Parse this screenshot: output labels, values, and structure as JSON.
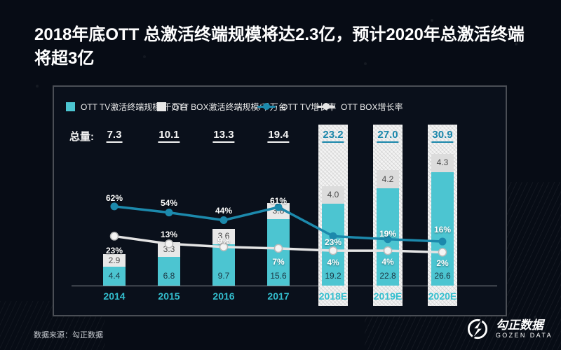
{
  "title": {
    "lines": [
      "2018年底OTT 总激活终端规模将达2.3亿，预计2020年总激活终端",
      "将超3亿"
    ]
  },
  "legend": [
    {
      "label": "OTT TV激活终端规模/千万台",
      "marker": "square",
      "color": "#4CC5D1"
    },
    {
      "label": "OTT BOX激活终端规模/千万台",
      "marker": "square",
      "color": "#E8E8E8"
    },
    {
      "label": "OTT TV增长率",
      "marker": "line",
      "color": "#1C89AC"
    },
    {
      "label": "OTT BOX增长率",
      "marker": "line",
      "color": "#E4E4E4"
    }
  ],
  "totals": {
    "label": "总量:",
    "values": [
      "7.3",
      "10.1",
      "13.3",
      "19.4",
      "23.2",
      "27.0",
      "30.9"
    ]
  },
  "chart_data": {
    "type": "combo-bar-line",
    "categories": [
      "2014",
      "2015",
      "2016",
      "2017",
      "2018E",
      "2019E",
      "2020E"
    ],
    "estimate_from_index": 4,
    "bar_unit": "千万台",
    "series": [
      {
        "name": "OTT TV激活终端规模/千万台",
        "type": "bar",
        "values": [
          4.4,
          6.8,
          9.7,
          15.6,
          19.2,
          22.8,
          26.6
        ]
      },
      {
        "name": "OTT BOX激活终端规模/千万台",
        "type": "bar",
        "values": [
          2.9,
          3.3,
          3.6,
          3.8,
          4.0,
          4.2,
          4.3
        ]
      },
      {
        "name": "OTT TV增长率",
        "type": "line",
        "unit": "%",
        "values": [
          62,
          54,
          44,
          61,
          23,
          19,
          16
        ]
      },
      {
        "name": "OTT BOX增长率",
        "type": "line",
        "unit": "%",
        "values": [
          23,
          13,
          9,
          7,
          4,
          4,
          2
        ]
      }
    ],
    "totals": [
      7.3,
      10.1,
      13.3,
      19.4,
      23.2,
      27.0,
      30.9
    ],
    "legend_position": "top",
    "grid": false
  },
  "colors": {
    "bar_tv": "#4CC5D1",
    "bar_box": "#E8E8E8",
    "bar_box_estimate": "#DCDCDC",
    "line_tv": "#1C89AC",
    "line_box": "#E4E4E4",
    "line_box_dot_fill": "#F4F4F4",
    "line_box_dot_stroke": "#B9B9B9",
    "total_historical": "#F5F5F5",
    "total_estimate": "#1A87AB",
    "year_label": "#33BFCF"
  },
  "source": "数据来源：勾正数据",
  "logo": {
    "cn": "勾正数据",
    "en": "GOZEN DATA"
  }
}
